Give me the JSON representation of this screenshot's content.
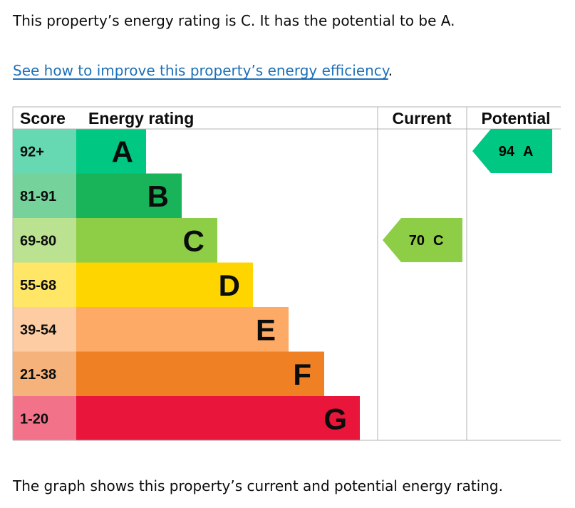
{
  "intro_text": "This property’s energy rating is C. It has the potential to be A.",
  "improve_link": "See how to improve this property’s energy efficiency",
  "improve_suffix": ".",
  "outro_text": "The graph shows this property’s current and potential energy rating.",
  "chart_data": {
    "type": "bar",
    "columns": {
      "score": "Score",
      "rating": "Energy rating",
      "current": "Current",
      "potential": "Potential"
    },
    "bands": [
      {
        "letter": "A",
        "range": "92+",
        "color": "#00c781",
        "tint": "#66d9b3"
      },
      {
        "letter": "B",
        "range": "81-91",
        "color": "#19b459",
        "tint": "#75d29b"
      },
      {
        "letter": "C",
        "range": "69-80",
        "color": "#8dce46",
        "tint": "#bbe290"
      },
      {
        "letter": "D",
        "range": "55-68",
        "color": "#ffd500",
        "tint": "#ffe666"
      },
      {
        "letter": "E",
        "range": "39-54",
        "color": "#fcaa65",
        "tint": "#fdcca3"
      },
      {
        "letter": "F",
        "range": "21-38",
        "color": "#ef8023",
        "tint": "#f5b37b"
      },
      {
        "letter": "G",
        "range": "1-20",
        "color": "#e9153b",
        "tint": "#f27389"
      }
    ],
    "current": {
      "value": 70,
      "letter": "C",
      "color": "#8dce46"
    },
    "potential": {
      "value": 94,
      "letter": "A",
      "color": "#00c781"
    }
  }
}
